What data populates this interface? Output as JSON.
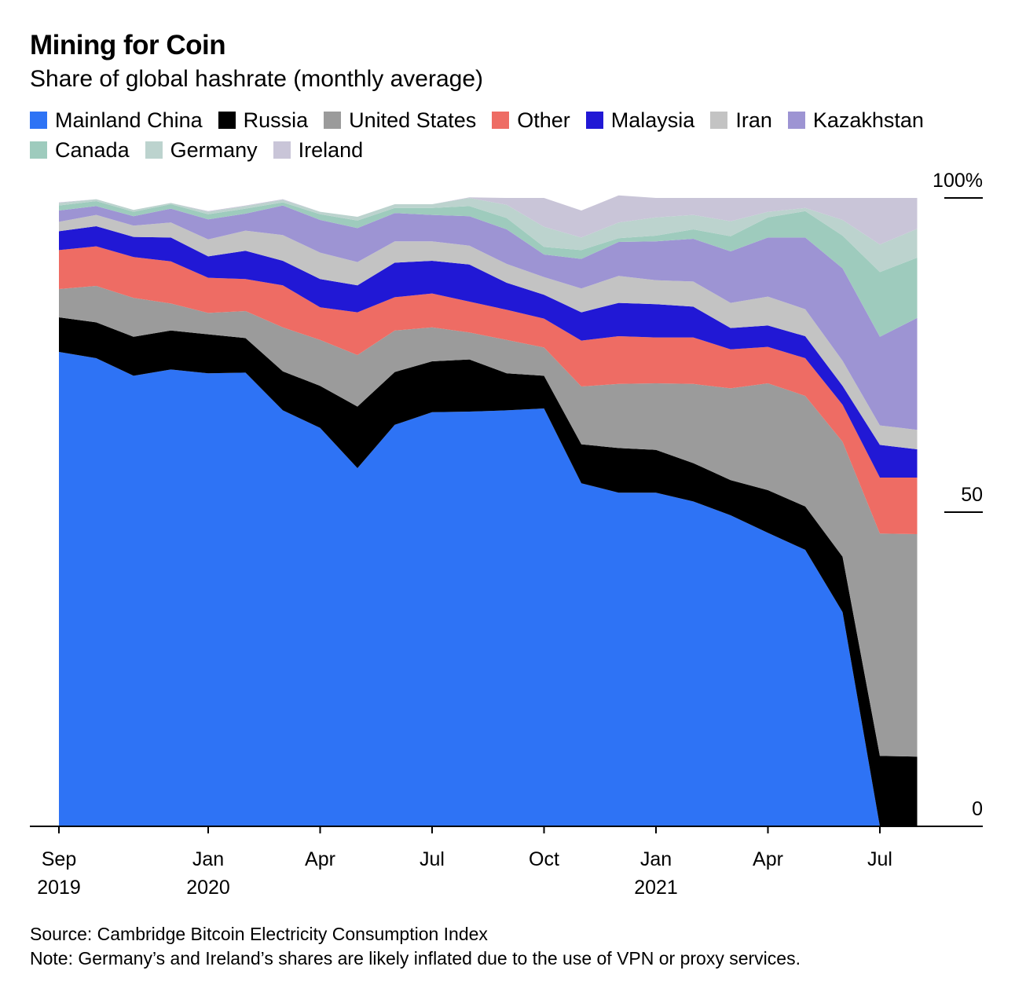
{
  "chart_data": {
    "type": "area",
    "stacked": true,
    "title": "Mining for Coin",
    "subtitle": "Share of global hashrate (monthly average)",
    "ylim": [
      0,
      100
    ],
    "y_ticks": [
      {
        "value": 100,
        "label": "100%"
      },
      {
        "value": 50,
        "label": "50"
      },
      {
        "value": 0,
        "label": "0"
      }
    ],
    "x_ticks": [
      {
        "x": 0,
        "label": "Sep",
        "sublabel": "2019"
      },
      {
        "x": 4,
        "label": "Jan",
        "sublabel": "2020"
      },
      {
        "x": 7,
        "label": "Apr",
        "sublabel": ""
      },
      {
        "x": 10,
        "label": "Jul",
        "sublabel": ""
      },
      {
        "x": 13,
        "label": "Oct",
        "sublabel": ""
      },
      {
        "x": 16,
        "label": "Jan",
        "sublabel": "2021"
      },
      {
        "x": 19,
        "label": "Apr",
        "sublabel": ""
      },
      {
        "x": 22,
        "label": "Jul",
        "sublabel": ""
      }
    ],
    "x": [
      "2019-09",
      "2019-10",
      "2019-11",
      "2019-12",
      "2020-01",
      "2020-02",
      "2020-03",
      "2020-04",
      "2020-05",
      "2020-06",
      "2020-07",
      "2020-08",
      "2020-09",
      "2020-10",
      "2020-11",
      "2020-12",
      "2021-01",
      "2021-02",
      "2021-03",
      "2021-04",
      "2021-05",
      "2021-06",
      "2021-07",
      "2021-08"
    ],
    "series": [
      {
        "name": "Mainland China",
        "color": "#2e73f5",
        "values": [
          75.5,
          74.5,
          71.7,
          72.7,
          72.1,
          72.2,
          66.2,
          63.4,
          57.0,
          63.9,
          65.9,
          66.0,
          66.2,
          66.5,
          54.6,
          53.1,
          53.1,
          51.7,
          49.5,
          46.7,
          44.0,
          34.1,
          0.0,
          0.0
        ]
      },
      {
        "name": "Russia",
        "color": "#000000",
        "values": [
          5.5,
          5.7,
          6.2,
          6.2,
          6.2,
          5.5,
          6.2,
          6.7,
          9.8,
          8.4,
          8.1,
          8.3,
          5.9,
          5.2,
          6.2,
          7.1,
          6.8,
          6.1,
          5.6,
          6.8,
          6.9,
          8.8,
          11.2,
          11.1
        ]
      },
      {
        "name": "United States",
        "color": "#9b9b9b",
        "values": [
          4.5,
          5.8,
          6.2,
          4.3,
          3.4,
          4.3,
          7.0,
          7.3,
          8.2,
          6.6,
          5.4,
          4.3,
          5.3,
          4.5,
          9.2,
          10.2,
          10.6,
          12.6,
          14.6,
          17.0,
          17.6,
          18.3,
          35.4,
          35.4
        ]
      },
      {
        "name": "Other",
        "color": "#ee6c64",
        "values": [
          6.2,
          6.3,
          6.5,
          6.7,
          5.6,
          5.1,
          6.7,
          5.2,
          6.8,
          5.3,
          5.4,
          4.9,
          4.8,
          4.6,
          7.3,
          7.6,
          7.3,
          7.4,
          6.2,
          5.8,
          6.0,
          5.9,
          8.9,
          9.0
        ]
      },
      {
        "name": "Malaysia",
        "color": "#2118d5",
        "values": [
          3.0,
          3.2,
          3.2,
          3.8,
          3.4,
          4.5,
          3.9,
          4.5,
          4.3,
          5.5,
          5.2,
          5.9,
          4.3,
          3.8,
          4.5,
          5.3,
          5.3,
          4.9,
          3.4,
          3.4,
          3.5,
          3.0,
          5.2,
          4.5
        ]
      },
      {
        "name": "Iran",
        "color": "#c3c3c3",
        "values": [
          1.5,
          1.8,
          1.8,
          2.4,
          2.7,
          3.2,
          4.1,
          4.2,
          3.7,
          3.4,
          3.1,
          3.0,
          3.0,
          2.8,
          3.8,
          4.3,
          3.8,
          4.0,
          4.0,
          4.6,
          4.3,
          4.0,
          3.1,
          3.1
        ]
      },
      {
        "name": "Kazakhstan",
        "color": "#9d94d3",
        "values": [
          1.8,
          1.4,
          1.5,
          2.2,
          3.2,
          2.7,
          4.7,
          5.2,
          5.4,
          4.5,
          4.2,
          4.7,
          5.5,
          3.6,
          4.7,
          5.4,
          6.2,
          6.8,
          8.2,
          9.4,
          11.4,
          14.7,
          14.1,
          17.8
        ]
      },
      {
        "name": "Canada",
        "color": "#9ecbbd",
        "values": [
          0.8,
          0.8,
          0.7,
          0.7,
          0.8,
          0.8,
          0.5,
          0.9,
          1.2,
          0.8,
          1.1,
          1.6,
          1.8,
          1.2,
          1.4,
          0.6,
          0.9,
          1.5,
          2.4,
          3.2,
          4.2,
          5.2,
          10.3,
          9.6
        ]
      },
      {
        "name": "Germany",
        "color": "#bcd3ce",
        "values": [
          0.4,
          0.3,
          0.3,
          0.2,
          0.4,
          0.4,
          0.4,
          0.4,
          0.6,
          0.6,
          0.6,
          1.3,
          2.1,
          3.2,
          2.0,
          2.5,
          2.9,
          2.3,
          2.4,
          0.9,
          0.5,
          2.5,
          4.4,
          4.6
        ]
      },
      {
        "name": "Ireland",
        "color": "#c9c5d8",
        "values": [
          0.1,
          0.0,
          0.0,
          0.0,
          0.1,
          0.1,
          0.1,
          0.0,
          0.0,
          0.0,
          0.0,
          0.1,
          1.1,
          4.6,
          4.3,
          4.3,
          3.1,
          2.7,
          3.7,
          2.2,
          1.6,
          3.5,
          7.4,
          4.9
        ]
      }
    ]
  },
  "footer": {
    "source": "Source: Cambridge Bitcoin Electricity Consumption Index",
    "note": "Note: Germany’s and Ireland’s shares are likely inflated due to the use of VPN or proxy services."
  }
}
